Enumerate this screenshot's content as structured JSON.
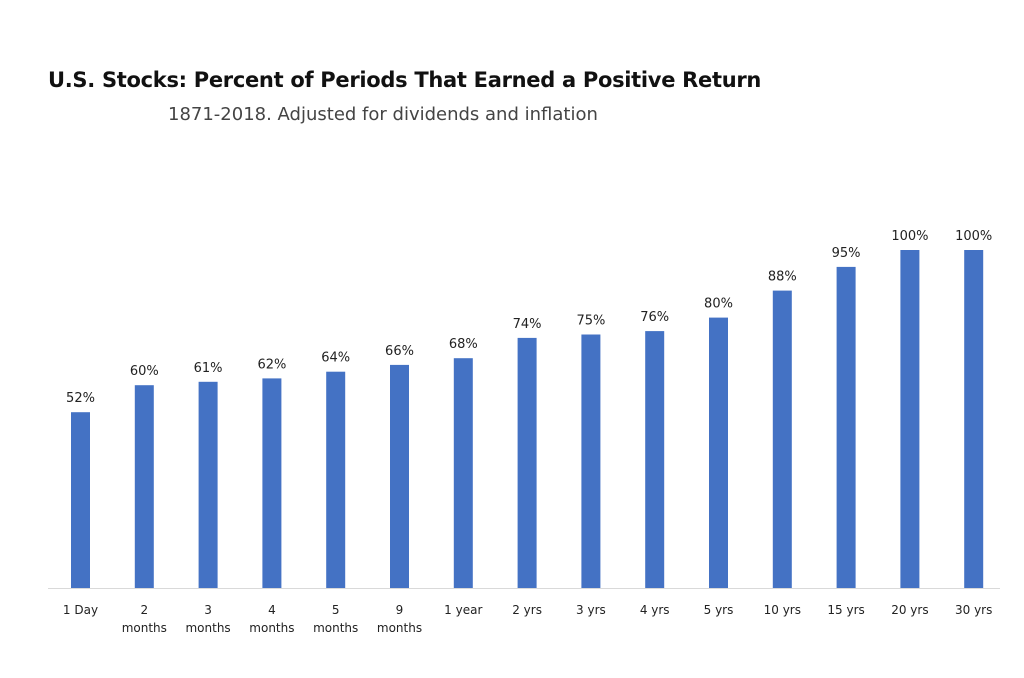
{
  "chart_data": {
    "type": "bar",
    "title": "U.S. Stocks: Percent of Periods That Earned a Positive Return",
    "subtitle": "1871-2018. Adjusted for dividends and inflation",
    "categories": [
      [
        "1 Day"
      ],
      [
        "2",
        "months"
      ],
      [
        "3",
        "months"
      ],
      [
        "4",
        "months"
      ],
      [
        "5",
        "months"
      ],
      [
        "9",
        "months"
      ],
      [
        "1 year"
      ],
      [
        "2 yrs"
      ],
      [
        "3 yrs"
      ],
      [
        "4 yrs"
      ],
      [
        "5 yrs"
      ],
      [
        "10 yrs"
      ],
      [
        "15 yrs"
      ],
      [
        "20 yrs"
      ],
      [
        "30 yrs"
      ]
    ],
    "values": [
      52,
      60,
      61,
      62,
      64,
      66,
      68,
      74,
      75,
      76,
      80,
      88,
      95,
      100,
      100
    ],
    "data_labels": [
      "52%",
      "60%",
      "61%",
      "62%",
      "64%",
      "66%",
      "68%",
      "74%",
      "75%",
      "76%",
      "80%",
      "88%",
      "95%",
      "100%",
      "100%"
    ],
    "ylim": [
      0,
      100
    ],
    "grid": false,
    "legend": "none",
    "bar_color": "#4472C4",
    "axis_color": "#D9D9D9"
  }
}
